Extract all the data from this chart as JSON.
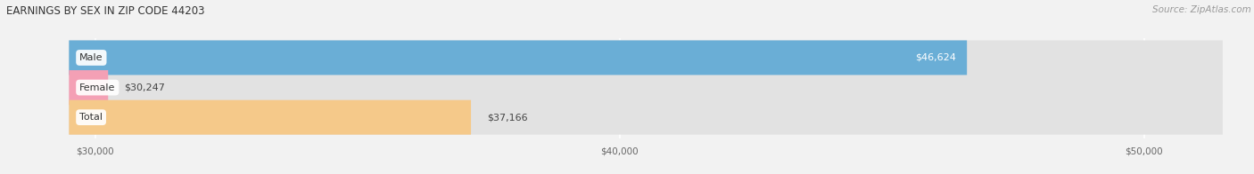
{
  "title": "EARNINGS BY SEX IN ZIP CODE 44203",
  "source": "Source: ZipAtlas.com",
  "categories": [
    "Male",
    "Female",
    "Total"
  ],
  "values": [
    46624,
    30247,
    37166
  ],
  "bar_colors": [
    "#6aaed6",
    "#f4a0b5",
    "#f5c98a"
  ],
  "xmin": 29500,
  "xmax": 51500,
  "xticks": [
    30000,
    40000,
    50000
  ],
  "xtick_labels": [
    "$30,000",
    "$40,000",
    "$50,000"
  ],
  "bar_height": 0.58,
  "figsize": [
    14.06,
    1.96
  ],
  "dpi": 100,
  "background_color": "#f2f2f2",
  "bar_bg_color": "#e2e2e2",
  "title_fontsize": 8.5,
  "source_fontsize": 7.5,
  "label_fontsize": 8,
  "tick_fontsize": 7.5,
  "category_fontsize": 8
}
